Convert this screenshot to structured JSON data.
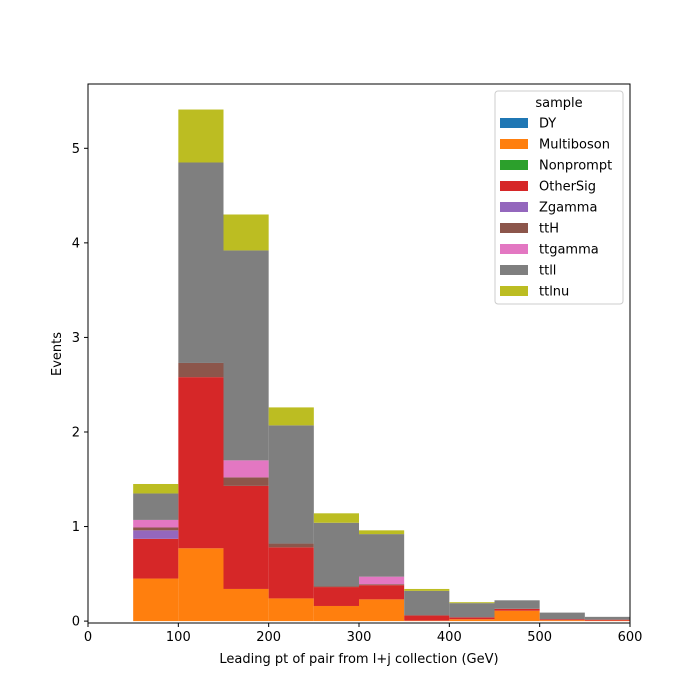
{
  "chart_data": {
    "type": "bar",
    "stacked": true,
    "histogram": true,
    "title": "",
    "xlabel": "Leading pt of pair from l+j collection (GeV)",
    "ylabel": "Events",
    "xlim": [
      0,
      600
    ],
    "ylim": [
      -0.02,
      5.68
    ],
    "xticks": [
      "0",
      "100",
      "200",
      "300",
      "400",
      "500",
      "600"
    ],
    "yticks": [
      "0",
      "1",
      "2",
      "3",
      "4",
      "5"
    ],
    "grid": false,
    "legend": {
      "title": "sample",
      "placement": "top-right"
    },
    "bin_edges": [
      50,
      100,
      150,
      200,
      250,
      300,
      350,
      400,
      450,
      500,
      550,
      600
    ],
    "series": [
      {
        "name": "DY",
        "color": "#1f77b4",
        "values": [
          0,
          0,
          0,
          0,
          0,
          0,
          0,
          0,
          0,
          0,
          0
        ]
      },
      {
        "name": "Multiboson",
        "color": "#ff7f0e",
        "values": [
          0.45,
          0.77,
          0.34,
          0.24,
          0.16,
          0.23,
          0.005,
          0.02,
          0.11,
          0.01,
          0.005
        ]
      },
      {
        "name": "Nonprompt",
        "color": "#2ca02c",
        "values": [
          0,
          0,
          0,
          0,
          0,
          0,
          0,
          0,
          0,
          0,
          0
        ]
      },
      {
        "name": "OtherSig",
        "color": "#d62728",
        "values": [
          0.42,
          1.81,
          1.09,
          0.54,
          0.2,
          0.15,
          0.055,
          0.02,
          0.02,
          0.01,
          0.01
        ]
      },
      {
        "name": "Zgamma",
        "color": "#9467bd",
        "values": [
          0.09,
          0,
          0,
          0,
          0,
          0,
          0,
          0,
          0,
          0,
          0
        ]
      },
      {
        "name": "ttH",
        "color": "#8c564b",
        "values": [
          0.03,
          0.15,
          0.09,
          0.04,
          0.01,
          0.01,
          0,
          0,
          0,
          0,
          0
        ]
      },
      {
        "name": "ttgamma",
        "color": "#e377c2",
        "values": [
          0.08,
          0,
          0.18,
          0,
          0,
          0.08,
          0,
          0,
          0,
          0,
          0
        ]
      },
      {
        "name": "ttll",
        "color": "#7f7f7f",
        "values": [
          0.28,
          2.12,
          2.22,
          1.25,
          0.67,
          0.45,
          0.26,
          0.15,
          0.09,
          0.07,
          0.03
        ]
      },
      {
        "name": "ttlnu",
        "color": "#bcbd22",
        "values": [
          0.1,
          0.56,
          0.38,
          0.19,
          0.1,
          0.04,
          0.02,
          0.01,
          0,
          0,
          0
        ]
      }
    ]
  }
}
